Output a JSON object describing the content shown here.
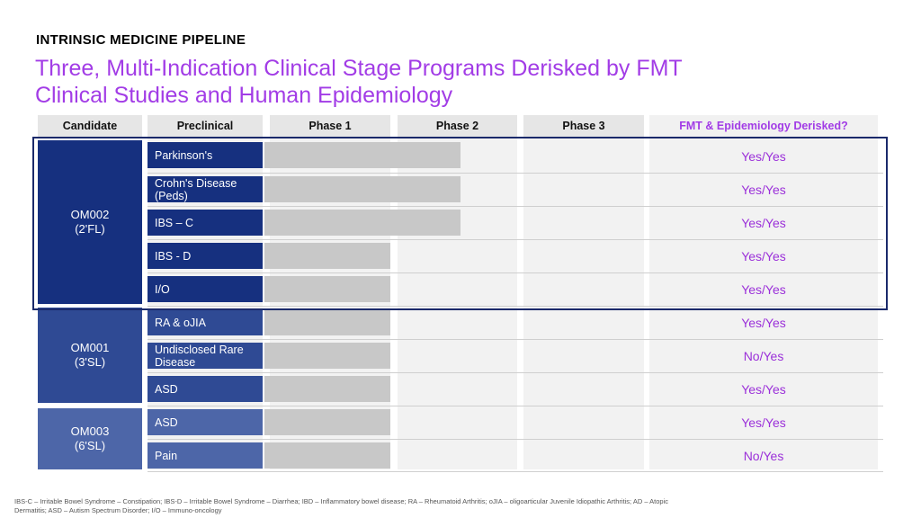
{
  "header": {
    "eyebrow": "INTRINSIC MEDICINE PIPELINE",
    "title_line1": "Three, Multi-Indication Clinical Stage Programs Derisked by FMT",
    "title_line2": "Clinical Studies and Human Epidemiology"
  },
  "table": {
    "columns": [
      "Candidate",
      "Preclinical",
      "Phase 1",
      "Phase 2",
      "Phase 3",
      "FMT & Epidemiology Derisked?"
    ],
    "candidates": [
      {
        "name": "OM002",
        "sub": "(2'FL)",
        "color": "#16307f"
      },
      {
        "name": "OM001",
        "sub": "(3'SL)",
        "color": "#2f4a94"
      },
      {
        "name": "OM003",
        "sub": "(6'SL)",
        "color": "#4d66a8"
      }
    ],
    "rows": [
      {
        "indication": "Parkinson's",
        "progress": "Phase 2",
        "derisked": "Yes/Yes"
      },
      {
        "indication": "Crohn's Disease (Peds)",
        "progress": "Phase 2",
        "derisked": "Yes/Yes"
      },
      {
        "indication": "IBS – C",
        "progress": "Phase 2",
        "derisked": "Yes/Yes"
      },
      {
        "indication": "IBS - D",
        "progress": "Phase 1",
        "derisked": "Yes/Yes"
      },
      {
        "indication": "I/O",
        "progress": "Phase 1",
        "derisked": "Yes/Yes"
      },
      {
        "indication": "RA & oJIA",
        "progress": "Phase 1",
        "derisked": "Yes/Yes"
      },
      {
        "indication": "Undisclosed Rare Disease",
        "progress": "Phase 1",
        "derisked": "No/Yes"
      },
      {
        "indication": "ASD",
        "progress": "Phase 1",
        "derisked": "Yes/Yes"
      },
      {
        "indication": "ASD",
        "progress": "Phase 1",
        "derisked": "Yes/Yes"
      },
      {
        "indication": "Pain",
        "progress": "Phase 1",
        "derisked": "No/Yes"
      }
    ]
  },
  "footnote": "IBS-C – Irritable Bowel Syndrome – Constipation; IBS-D – Irritable Bowel Syndrome – Diarrhea; IBD – Inflammatory bowel disease; RA – Rheumatoid Arthritis; oJIA – oligoarticular Juvenile Idiopathic Arthritis; AD – Atopic Dermatitis; ASD – Autism Spectrum Disorder; I/O – Immuno-oncology"
}
